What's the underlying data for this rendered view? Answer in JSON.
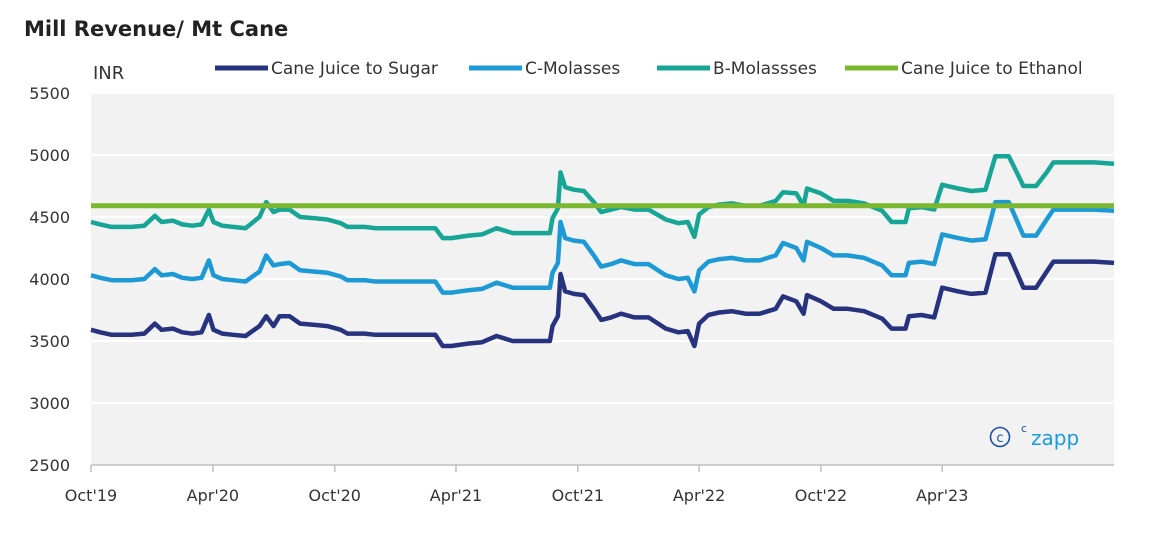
{
  "chart_data": {
    "type": "line",
    "title": "Mill Revenue/ Mt Cane",
    "ylabel": "INR",
    "ylim": [
      2500,
      5500
    ],
    "yticks": [
      5500,
      5000,
      4500,
      4000,
      3500,
      3000,
      2500
    ],
    "xlim": [
      "2019-10-01",
      "2023-12-15"
    ],
    "xticks": [
      {
        "date": "2019-10-01",
        "label": "Oct'19"
      },
      {
        "date": "2020-04-01",
        "label": "Apr'20"
      },
      {
        "date": "2020-10-01",
        "label": "Oct'20"
      },
      {
        "date": "2021-04-01",
        "label": "Apr'21"
      },
      {
        "date": "2021-10-01",
        "label": "Oct'21"
      },
      {
        "date": "2022-04-01",
        "label": "Apr'22"
      },
      {
        "date": "2022-10-01",
        "label": "Oct'22"
      },
      {
        "date": "2023-04-01",
        "label": "Apr'23"
      }
    ],
    "grid": "horizontal",
    "legend_position": "top",
    "watermark": "czapp",
    "series": [
      {
        "name": "Cane Juice to Sugar",
        "color": "#27337e",
        "points": [
          [
            "2019-10-01",
            3590
          ],
          [
            "2019-10-15",
            3570
          ],
          [
            "2019-11-01",
            3550
          ],
          [
            "2019-12-01",
            3550
          ],
          [
            "2019-12-20",
            3560
          ],
          [
            "2020-01-05",
            3640
          ],
          [
            "2020-01-15",
            3590
          ],
          [
            "2020-02-01",
            3600
          ],
          [
            "2020-02-15",
            3570
          ],
          [
            "2020-03-01",
            3560
          ],
          [
            "2020-03-15",
            3570
          ],
          [
            "2020-03-26",
            3710
          ],
          [
            "2020-04-02",
            3590
          ],
          [
            "2020-04-15",
            3560
          ],
          [
            "2020-05-01",
            3550
          ],
          [
            "2020-05-20",
            3540
          ],
          [
            "2020-06-10",
            3620
          ],
          [
            "2020-06-20",
            3700
          ],
          [
            "2020-07-01",
            3620
          ],
          [
            "2020-07-10",
            3700
          ],
          [
            "2020-07-25",
            3700
          ],
          [
            "2020-08-10",
            3640
          ],
          [
            "2020-09-01",
            3630
          ],
          [
            "2020-09-20",
            3620
          ],
          [
            "2020-10-10",
            3590
          ],
          [
            "2020-10-20",
            3560
          ],
          [
            "2020-11-15",
            3560
          ],
          [
            "2020-12-01",
            3550
          ],
          [
            "2021-01-15",
            3550
          ],
          [
            "2021-02-10",
            3550
          ],
          [
            "2021-03-01",
            3550
          ],
          [
            "2021-03-12",
            3460
          ],
          [
            "2021-03-25",
            3460
          ],
          [
            "2021-04-20",
            3480
          ],
          [
            "2021-05-10",
            3490
          ],
          [
            "2021-06-01",
            3540
          ],
          [
            "2021-06-25",
            3500
          ],
          [
            "2021-07-20",
            3500
          ],
          [
            "2021-08-01",
            3500
          ],
          [
            "2021-08-20",
            3500
          ],
          [
            "2021-08-24",
            3620
          ],
          [
            "2021-09-01",
            3700
          ],
          [
            "2021-09-05",
            4040
          ],
          [
            "2021-09-12",
            3900
          ],
          [
            "2021-09-25",
            3880
          ],
          [
            "2021-10-10",
            3870
          ],
          [
            "2021-10-25",
            3760
          ],
          [
            "2021-11-05",
            3670
          ],
          [
            "2021-11-20",
            3690
          ],
          [
            "2021-12-05",
            3720
          ],
          [
            "2021-12-25",
            3690
          ],
          [
            "2022-01-15",
            3690
          ],
          [
            "2022-02-10",
            3600
          ],
          [
            "2022-03-01",
            3570
          ],
          [
            "2022-03-15",
            3580
          ],
          [
            "2022-03-25",
            3460
          ],
          [
            "2022-04-01",
            3640
          ],
          [
            "2022-04-15",
            3710
          ],
          [
            "2022-05-01",
            3730
          ],
          [
            "2022-05-20",
            3740
          ],
          [
            "2022-06-10",
            3720
          ],
          [
            "2022-07-01",
            3720
          ],
          [
            "2022-07-25",
            3760
          ],
          [
            "2022-08-05",
            3860
          ],
          [
            "2022-08-25",
            3820
          ],
          [
            "2022-09-05",
            3720
          ],
          [
            "2022-09-10",
            3870
          ],
          [
            "2022-10-01",
            3820
          ],
          [
            "2022-10-20",
            3760
          ],
          [
            "2022-11-10",
            3760
          ],
          [
            "2022-12-05",
            3740
          ],
          [
            "2023-01-01",
            3680
          ],
          [
            "2023-01-15",
            3600
          ],
          [
            "2023-02-05",
            3600
          ],
          [
            "2023-02-10",
            3700
          ],
          [
            "2023-03-01",
            3710
          ],
          [
            "2023-03-20",
            3690
          ],
          [
            "2023-04-01",
            3930
          ],
          [
            "2023-04-25",
            3900
          ],
          [
            "2023-05-15",
            3880
          ],
          [
            "2023-06-05",
            3890
          ],
          [
            "2023-06-20",
            4200
          ],
          [
            "2023-07-10",
            4200
          ],
          [
            "2023-08-01",
            3930
          ],
          [
            "2023-08-20",
            3930
          ],
          [
            "2023-09-05",
            4060
          ],
          [
            "2023-09-15",
            4140
          ],
          [
            "2023-10-20",
            4140
          ],
          [
            "2023-11-15",
            4140
          ],
          [
            "2023-12-15",
            4130
          ]
        ]
      },
      {
        "name": "C-Molasses",
        "color": "#1d9ad6",
        "points": [
          [
            "2019-10-01",
            4030
          ],
          [
            "2019-10-15",
            4010
          ],
          [
            "2019-11-01",
            3990
          ],
          [
            "2019-12-01",
            3990
          ],
          [
            "2019-12-20",
            4000
          ],
          [
            "2020-01-05",
            4080
          ],
          [
            "2020-01-15",
            4030
          ],
          [
            "2020-02-01",
            4040
          ],
          [
            "2020-02-15",
            4010
          ],
          [
            "2020-03-01",
            4000
          ],
          [
            "2020-03-15",
            4010
          ],
          [
            "2020-03-26",
            4150
          ],
          [
            "2020-04-02",
            4030
          ],
          [
            "2020-04-15",
            4000
          ],
          [
            "2020-05-01",
            3990
          ],
          [
            "2020-05-20",
            3980
          ],
          [
            "2020-06-10",
            4060
          ],
          [
            "2020-06-20",
            4190
          ],
          [
            "2020-07-01",
            4110
          ],
          [
            "2020-07-10",
            4120
          ],
          [
            "2020-07-25",
            4130
          ],
          [
            "2020-08-10",
            4070
          ],
          [
            "2020-09-01",
            4060
          ],
          [
            "2020-09-20",
            4050
          ],
          [
            "2020-10-10",
            4020
          ],
          [
            "2020-10-20",
            3990
          ],
          [
            "2020-11-15",
            3990
          ],
          [
            "2020-12-01",
            3980
          ],
          [
            "2021-01-15",
            3980
          ],
          [
            "2021-02-10",
            3980
          ],
          [
            "2021-03-01",
            3980
          ],
          [
            "2021-03-12",
            3890
          ],
          [
            "2021-03-25",
            3890
          ],
          [
            "2021-04-20",
            3910
          ],
          [
            "2021-05-10",
            3920
          ],
          [
            "2021-06-01",
            3970
          ],
          [
            "2021-06-25",
            3930
          ],
          [
            "2021-07-20",
            3930
          ],
          [
            "2021-08-01",
            3930
          ],
          [
            "2021-08-20",
            3930
          ],
          [
            "2021-08-24",
            4050
          ],
          [
            "2021-09-01",
            4130
          ],
          [
            "2021-09-05",
            4460
          ],
          [
            "2021-09-12",
            4330
          ],
          [
            "2021-09-25",
            4310
          ],
          [
            "2021-10-10",
            4300
          ],
          [
            "2021-10-25",
            4190
          ],
          [
            "2021-11-05",
            4100
          ],
          [
            "2021-11-20",
            4120
          ],
          [
            "2021-12-05",
            4150
          ],
          [
            "2021-12-25",
            4120
          ],
          [
            "2022-01-15",
            4120
          ],
          [
            "2022-02-10",
            4030
          ],
          [
            "2022-03-01",
            4000
          ],
          [
            "2022-03-15",
            4010
          ],
          [
            "2022-03-25",
            3900
          ],
          [
            "2022-04-01",
            4070
          ],
          [
            "2022-04-15",
            4140
          ],
          [
            "2022-05-01",
            4160
          ],
          [
            "2022-05-20",
            4170
          ],
          [
            "2022-06-10",
            4150
          ],
          [
            "2022-07-01",
            4150
          ],
          [
            "2022-07-25",
            4190
          ],
          [
            "2022-08-05",
            4290
          ],
          [
            "2022-08-25",
            4250
          ],
          [
            "2022-09-05",
            4150
          ],
          [
            "2022-09-10",
            4300
          ],
          [
            "2022-10-01",
            4250
          ],
          [
            "2022-10-20",
            4190
          ],
          [
            "2022-11-10",
            4190
          ],
          [
            "2022-12-05",
            4170
          ],
          [
            "2023-01-01",
            4110
          ],
          [
            "2023-01-15",
            4030
          ],
          [
            "2023-02-05",
            4030
          ],
          [
            "2023-02-10",
            4130
          ],
          [
            "2023-03-01",
            4140
          ],
          [
            "2023-03-20",
            4120
          ],
          [
            "2023-04-01",
            4360
          ],
          [
            "2023-04-25",
            4330
          ],
          [
            "2023-05-15",
            4310
          ],
          [
            "2023-06-05",
            4320
          ],
          [
            "2023-06-20",
            4620
          ],
          [
            "2023-07-10",
            4620
          ],
          [
            "2023-08-01",
            4350
          ],
          [
            "2023-08-20",
            4350
          ],
          [
            "2023-09-05",
            4480
          ],
          [
            "2023-09-15",
            4560
          ],
          [
            "2023-10-20",
            4560
          ],
          [
            "2023-11-15",
            4560
          ],
          [
            "2023-12-15",
            4550
          ]
        ]
      },
      {
        "name": "B-Molassses",
        "color": "#17a596",
        "points": [
          [
            "2019-10-01",
            4460
          ],
          [
            "2019-10-15",
            4440
          ],
          [
            "2019-11-01",
            4420
          ],
          [
            "2019-12-01",
            4420
          ],
          [
            "2019-12-20",
            4430
          ],
          [
            "2020-01-05",
            4510
          ],
          [
            "2020-01-15",
            4460
          ],
          [
            "2020-02-01",
            4470
          ],
          [
            "2020-02-15",
            4440
          ],
          [
            "2020-03-01",
            4430
          ],
          [
            "2020-03-15",
            4440
          ],
          [
            "2020-03-26",
            4560
          ],
          [
            "2020-04-02",
            4460
          ],
          [
            "2020-04-15",
            4430
          ],
          [
            "2020-05-01",
            4420
          ],
          [
            "2020-05-20",
            4410
          ],
          [
            "2020-06-10",
            4500
          ],
          [
            "2020-06-20",
            4620
          ],
          [
            "2020-07-01",
            4540
          ],
          [
            "2020-07-10",
            4560
          ],
          [
            "2020-07-25",
            4560
          ],
          [
            "2020-08-10",
            4500
          ],
          [
            "2020-09-01",
            4490
          ],
          [
            "2020-09-20",
            4480
          ],
          [
            "2020-10-10",
            4450
          ],
          [
            "2020-10-20",
            4420
          ],
          [
            "2020-11-15",
            4420
          ],
          [
            "2020-12-01",
            4410
          ],
          [
            "2021-01-15",
            4410
          ],
          [
            "2021-02-10",
            4410
          ],
          [
            "2021-03-01",
            4410
          ],
          [
            "2021-03-12",
            4330
          ],
          [
            "2021-03-25",
            4330
          ],
          [
            "2021-04-20",
            4350
          ],
          [
            "2021-05-10",
            4360
          ],
          [
            "2021-06-01",
            4410
          ],
          [
            "2021-06-25",
            4370
          ],
          [
            "2021-07-20",
            4370
          ],
          [
            "2021-08-01",
            4370
          ],
          [
            "2021-08-20",
            4370
          ],
          [
            "2021-08-24",
            4490
          ],
          [
            "2021-09-01",
            4570
          ],
          [
            "2021-09-05",
            4860
          ],
          [
            "2021-09-12",
            4740
          ],
          [
            "2021-09-25",
            4720
          ],
          [
            "2021-10-10",
            4710
          ],
          [
            "2021-10-25",
            4620
          ],
          [
            "2021-11-05",
            4540
          ],
          [
            "2021-11-20",
            4560
          ],
          [
            "2021-12-05",
            4580
          ],
          [
            "2021-12-25",
            4560
          ],
          [
            "2022-01-15",
            4560
          ],
          [
            "2022-02-10",
            4480
          ],
          [
            "2022-03-01",
            4450
          ],
          [
            "2022-03-15",
            4460
          ],
          [
            "2022-03-25",
            4340
          ],
          [
            "2022-04-01",
            4520
          ],
          [
            "2022-04-15",
            4580
          ],
          [
            "2022-05-01",
            4600
          ],
          [
            "2022-05-20",
            4610
          ],
          [
            "2022-06-10",
            4590
          ],
          [
            "2022-07-01",
            4590
          ],
          [
            "2022-07-25",
            4630
          ],
          [
            "2022-08-05",
            4700
          ],
          [
            "2022-08-25",
            4690
          ],
          [
            "2022-09-05",
            4590
          ],
          [
            "2022-09-10",
            4730
          ],
          [
            "2022-10-01",
            4690
          ],
          [
            "2022-10-20",
            4630
          ],
          [
            "2022-11-10",
            4630
          ],
          [
            "2022-12-05",
            4610
          ],
          [
            "2023-01-01",
            4550
          ],
          [
            "2023-01-15",
            4460
          ],
          [
            "2023-02-05",
            4460
          ],
          [
            "2023-02-10",
            4570
          ],
          [
            "2023-03-01",
            4580
          ],
          [
            "2023-03-20",
            4560
          ],
          [
            "2023-04-01",
            4760
          ],
          [
            "2023-04-25",
            4730
          ],
          [
            "2023-05-15",
            4710
          ],
          [
            "2023-06-05",
            4720
          ],
          [
            "2023-06-20",
            4990
          ],
          [
            "2023-07-10",
            4990
          ],
          [
            "2023-08-01",
            4750
          ],
          [
            "2023-08-20",
            4750
          ],
          [
            "2023-09-05",
            4860
          ],
          [
            "2023-09-15",
            4940
          ],
          [
            "2023-10-20",
            4940
          ],
          [
            "2023-11-15",
            4940
          ],
          [
            "2023-12-15",
            4930
          ]
        ]
      },
      {
        "name": "Cane Juice to Ethanol",
        "color": "#7cb82f",
        "points": [
          [
            "2019-10-01",
            4590
          ],
          [
            "2023-12-15",
            4590
          ]
        ]
      }
    ]
  }
}
